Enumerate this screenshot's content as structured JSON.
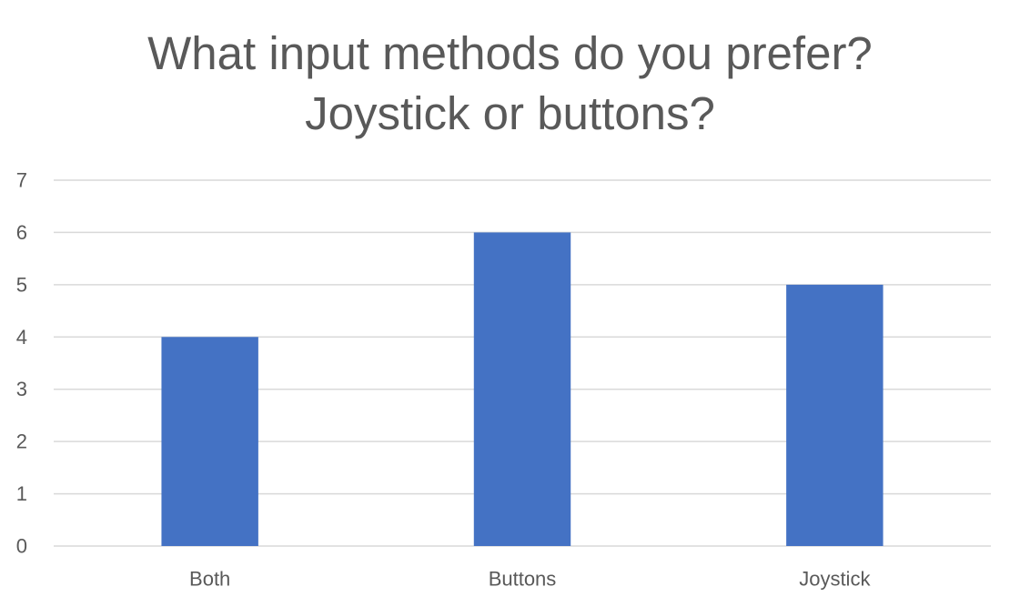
{
  "chart_data": {
    "type": "bar",
    "title_lines": [
      "What input methods do you prefer?",
      "Joystick or buttons?"
    ],
    "categories": [
      "Both",
      "Buttons",
      "Joystick"
    ],
    "values": [
      4,
      6,
      5
    ],
    "xlabel": "",
    "ylabel": "",
    "ylim": [
      0,
      7
    ],
    "yticks": [
      0,
      1,
      2,
      3,
      4,
      5,
      6,
      7
    ],
    "grid": true,
    "legend": "none",
    "bar_color": "#4472C4",
    "grid_color": "#D9D9D9",
    "text_color": "#595959"
  }
}
